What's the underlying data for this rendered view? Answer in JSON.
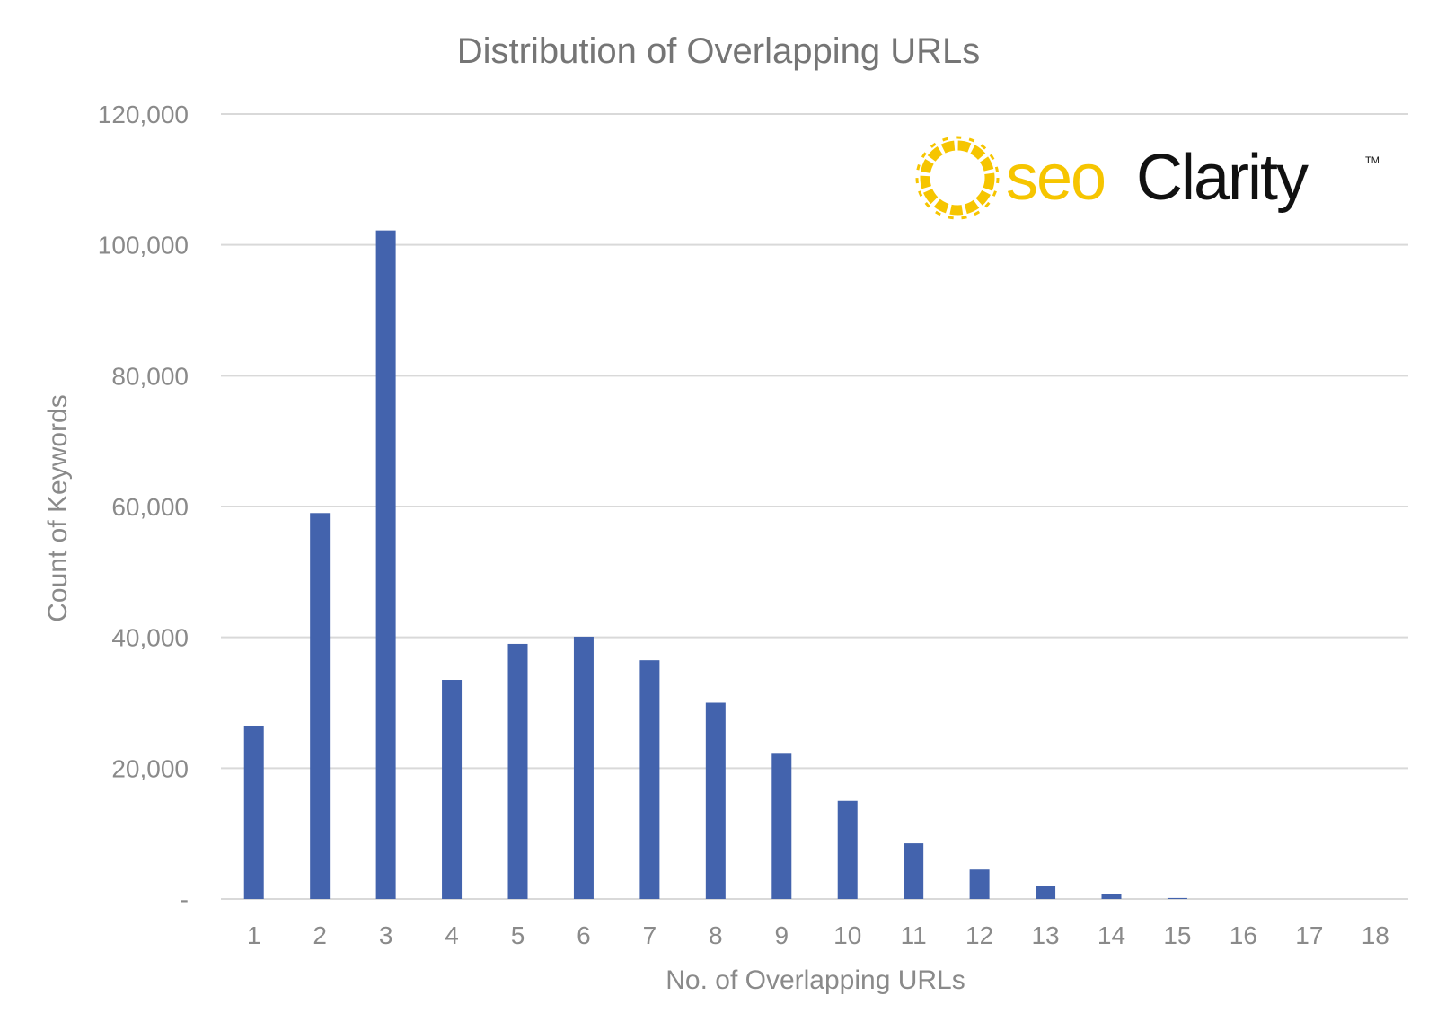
{
  "chart_data": {
    "type": "bar",
    "title": "Distribution of Overlapping URLs",
    "xlabel": "No. of Overlapping URLs",
    "ylabel": "Count of Keywords",
    "categories": [
      "1",
      "2",
      "3",
      "4",
      "5",
      "6",
      "7",
      "8",
      "9",
      "10",
      "11",
      "12",
      "13",
      "14",
      "15",
      "16",
      "17",
      "18"
    ],
    "values": [
      26500,
      59000,
      102200,
      33500,
      39000,
      40100,
      36500,
      30000,
      22200,
      15000,
      8500,
      4500,
      2000,
      800,
      150,
      0,
      0,
      0
    ],
    "ylim": [
      0,
      120000
    ],
    "yticks": [
      0,
      20000,
      40000,
      60000,
      80000,
      100000,
      120000
    ],
    "ytick_labels": [
      "-",
      "20,000",
      "40,000",
      "60,000",
      "80,000",
      "100,000",
      "120,000"
    ],
    "grid": true,
    "legend": "none",
    "bar_color": "#4363ad",
    "gridline_color": "#d9d9d9",
    "text_color": "#8a8a8a"
  },
  "logo": {
    "text_seo": "seo",
    "text_clarity": "Clarity",
    "trademark": "TM",
    "seo_color": "#f6c500",
    "clarity_color": "#111111",
    "icon": "sun-burst-icon"
  }
}
